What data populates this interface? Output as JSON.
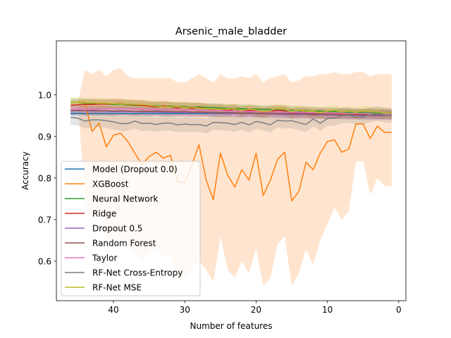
{
  "chart_data": {
    "type": "line",
    "title": "Arsenic_male_bladder",
    "xlabel": "Number of features",
    "ylabel": "Accuracy",
    "xlim": [
      48,
      -1
    ],
    "ylim": [
      0.505,
      1.13
    ],
    "x_inverted": true,
    "xticks": [
      40,
      30,
      20,
      10,
      0
    ],
    "xtick_labels": [
      "40",
      "30",
      "20",
      "10",
      "0"
    ],
    "yticks": [
      0.6,
      0.7,
      0.8,
      0.9,
      1.0
    ],
    "ytick_labels": [
      "0.6",
      "0.7",
      "0.8",
      "0.9",
      "1.0"
    ],
    "grid": false,
    "legend_position": "lower-left",
    "x": [
      46,
      45,
      44,
      43,
      42,
      41,
      40,
      39,
      38,
      37,
      36,
      35,
      34,
      33,
      32,
      31,
      30,
      29,
      28,
      27,
      26,
      25,
      24,
      23,
      22,
      21,
      20,
      19,
      18,
      17,
      16,
      15,
      14,
      13,
      12,
      11,
      10,
      9,
      8,
      7,
      6,
      5,
      4,
      3,
      2,
      1
    ],
    "series": [
      {
        "name": "Model (Dropout 0.0)",
        "color": "#1f77b4",
        "values": [
          0.955,
          0.955,
          0.955,
          0.955,
          0.955,
          0.955,
          0.955,
          0.955,
          0.955,
          0.955,
          0.955,
          0.955,
          0.955,
          0.955,
          0.955,
          0.955,
          0.955,
          0.955,
          0.955,
          0.955,
          0.955,
          0.955,
          0.955,
          0.955,
          0.955,
          0.955,
          0.955,
          0.955,
          0.955,
          0.955,
          0.955,
          0.955,
          0.955,
          0.955,
          0.955,
          0.955,
          0.955,
          0.955,
          0.955,
          0.955,
          0.955,
          0.955,
          0.955,
          0.955,
          0.955,
          0.955
        ],
        "band": 0.005
      },
      {
        "name": "XGBoost",
        "color": "#ff7f0e",
        "values": [
          0.982,
          0.982,
          0.982,
          0.912,
          0.932,
          0.875,
          0.903,
          0.908,
          0.888,
          0.86,
          0.832,
          0.852,
          0.862,
          0.848,
          0.855,
          0.79,
          0.79,
          0.832,
          0.88,
          0.795,
          0.748,
          0.86,
          0.808,
          0.778,
          0.82,
          0.795,
          0.86,
          0.758,
          0.795,
          0.845,
          0.862,
          0.745,
          0.768,
          0.838,
          0.82,
          0.86,
          0.888,
          0.892,
          0.862,
          0.87,
          0.93,
          0.93,
          0.895,
          0.925,
          0.91,
          0.91
        ],
        "band_upper": [
          0.982,
          0.982,
          1.06,
          1.05,
          1.06,
          1.045,
          1.06,
          1.065,
          1.045,
          1.04,
          1.04,
          1.04,
          1.04,
          1.04,
          1.04,
          1.03,
          1.03,
          1.04,
          1.05,
          1.04,
          1.03,
          1.05,
          1.04,
          1.04,
          1.045,
          1.04,
          1.05,
          1.03,
          1.04,
          1.045,
          1.05,
          1.03,
          1.035,
          1.045,
          1.045,
          1.05,
          1.05,
          1.055,
          1.05,
          1.05,
          1.055,
          1.055,
          1.045,
          1.05,
          1.05,
          1.05
        ],
        "band_lower": [
          0.982,
          0.982,
          0.75,
          0.7,
          0.72,
          0.65,
          0.66,
          0.65,
          0.64,
          0.62,
          0.6,
          0.62,
          0.63,
          0.61,
          0.62,
          0.56,
          0.56,
          0.58,
          0.6,
          0.58,
          0.55,
          0.66,
          0.58,
          0.56,
          0.6,
          0.57,
          0.63,
          0.54,
          0.56,
          0.64,
          0.66,
          0.54,
          0.57,
          0.63,
          0.59,
          0.65,
          0.69,
          0.73,
          0.7,
          0.72,
          0.84,
          0.84,
          0.76,
          0.8,
          0.78,
          0.78
        ]
      },
      {
        "name": "Neural Network",
        "color": "#2ca02c",
        "values": [
          0.982,
          0.982,
          0.98,
          0.98,
          0.978,
          0.978,
          0.977,
          0.977,
          0.976,
          0.975,
          0.975,
          0.974,
          0.974,
          0.973,
          0.973,
          0.972,
          0.972,
          0.971,
          0.971,
          0.97,
          0.97,
          0.969,
          0.968,
          0.967,
          0.967,
          0.966,
          0.966,
          0.965,
          0.965,
          0.964,
          0.963,
          0.963,
          0.962,
          0.962,
          0.961,
          0.961,
          0.96,
          0.96,
          0.959,
          0.958,
          0.958,
          0.957,
          0.957,
          0.956,
          0.956,
          0.955
        ],
        "band": 0.01
      },
      {
        "name": "Ridge",
        "color": "#d62728",
        "values": [
          0.975,
          0.976,
          0.977,
          0.977,
          0.978,
          0.978,
          0.979,
          0.979,
          0.977,
          0.976,
          0.975,
          0.973,
          0.971,
          0.974,
          0.971,
          0.969,
          0.971,
          0.968,
          0.97,
          0.967,
          0.965,
          0.966,
          0.962,
          0.966,
          0.96,
          0.963,
          0.961,
          0.958,
          0.961,
          0.963,
          0.962,
          0.955,
          0.958,
          0.958,
          0.955,
          0.956,
          0.954,
          0.954,
          0.955,
          0.954,
          0.953,
          0.954,
          0.955,
          0.953,
          0.954,
          0.953
        ],
        "band": 0.012
      },
      {
        "name": "Dropout 0.5",
        "color": "#9467bd",
        "values": [
          0.962,
          0.962,
          0.962,
          0.961,
          0.961,
          0.961,
          0.96,
          0.96,
          0.96,
          0.96,
          0.959,
          0.959,
          0.959,
          0.958,
          0.958,
          0.958,
          0.957,
          0.957,
          0.957,
          0.957,
          0.956,
          0.956,
          0.956,
          0.955,
          0.955,
          0.955,
          0.955,
          0.954,
          0.954,
          0.954,
          0.953,
          0.953,
          0.953,
          0.953,
          0.952,
          0.952,
          0.952,
          0.952,
          0.951,
          0.951,
          0.951,
          0.95,
          0.95,
          0.95,
          0.95,
          0.95
        ],
        "band": 0.01
      },
      {
        "name": "Random Forest",
        "color": "#8c564b",
        "values": [
          0.962,
          0.963,
          0.962,
          0.963,
          0.962,
          0.962,
          0.961,
          0.962,
          0.961,
          0.96,
          0.961,
          0.96,
          0.961,
          0.96,
          0.96,
          0.959,
          0.96,
          0.958,
          0.959,
          0.958,
          0.958,
          0.957,
          0.958,
          0.957,
          0.956,
          0.957,
          0.956,
          0.955,
          0.956,
          0.955,
          0.955,
          0.954,
          0.955,
          0.954,
          0.953,
          0.954,
          0.953,
          0.953,
          0.952,
          0.953,
          0.952,
          0.952,
          0.951,
          0.952,
          0.951,
          0.951
        ],
        "band": 0.01
      },
      {
        "name": "Taylor",
        "color": "#e377c2",
        "values": [
          0.965,
          0.965,
          0.966,
          0.966,
          0.966,
          0.967,
          0.967,
          0.967,
          0.966,
          0.966,
          0.965,
          0.965,
          0.965,
          0.964,
          0.964,
          0.964,
          0.963,
          0.963,
          0.963,
          0.962,
          0.962,
          0.962,
          0.961,
          0.961,
          0.96,
          0.96,
          0.96,
          0.959,
          0.959,
          0.959,
          0.958,
          0.958,
          0.958,
          0.957,
          0.957,
          0.957,
          0.956,
          0.956,
          0.956,
          0.955,
          0.955,
          0.955,
          0.955,
          0.954,
          0.954,
          0.954
        ],
        "band": 0.011
      },
      {
        "name": "RF-Net Cross-Entropy",
        "color": "#7f7f7f",
        "values": [
          0.946,
          0.944,
          0.937,
          0.94,
          0.94,
          0.938,
          0.935,
          0.931,
          0.931,
          0.937,
          0.931,
          0.932,
          0.929,
          0.932,
          0.932,
          0.928,
          0.93,
          0.928,
          0.929,
          0.925,
          0.934,
          0.933,
          0.932,
          0.929,
          0.934,
          0.928,
          0.936,
          0.933,
          0.928,
          0.939,
          0.937,
          0.938,
          0.933,
          0.929,
          0.942,
          0.932,
          0.943,
          0.944,
          0.95,
          0.951,
          0.946,
          0.947,
          0.952,
          0.955,
          0.952,
          0.951
        ],
        "band": 0.018
      },
      {
        "name": "RF-Net MSE",
        "color": "#bcbd22",
        "values": [
          0.982,
          0.982,
          0.981,
          0.981,
          0.98,
          0.98,
          0.979,
          0.978,
          0.978,
          0.977,
          0.977,
          0.975,
          0.973,
          0.972,
          0.971,
          0.972,
          0.97,
          0.971,
          0.968,
          0.967,
          0.966,
          0.965,
          0.967,
          0.966,
          0.962,
          0.966,
          0.964,
          0.96,
          0.962,
          0.968,
          0.966,
          0.96,
          0.964,
          0.96,
          0.961,
          0.957,
          0.961,
          0.963,
          0.959,
          0.961,
          0.958,
          0.962,
          0.96,
          0.959,
          0.957,
          0.955
        ],
        "band": 0.012
      }
    ]
  }
}
